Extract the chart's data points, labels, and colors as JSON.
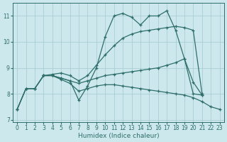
{
  "xlabel": "Humidex (Indice chaleur)",
  "background_color": "#cde8ec",
  "line_color": "#2d6e6a",
  "grid_color": "#aacdd4",
  "xlim": [
    -0.5,
    23.5
  ],
  "ylim": [
    6.9,
    11.5
  ],
  "yticks": [
    7,
    8,
    9,
    10,
    11
  ],
  "xticks": [
    0,
    1,
    2,
    3,
    4,
    5,
    6,
    7,
    8,
    9,
    10,
    11,
    12,
    13,
    14,
    15,
    16,
    17,
    18,
    19,
    20,
    21,
    22,
    23
  ],
  "series": [
    {
      "x": [
        0,
        1,
        2,
        3,
        4,
        5,
        6,
        7,
        8,
        9,
        10,
        11,
        12,
        13,
        14,
        15,
        16,
        17,
        18,
        19,
        20,
        21,
        22,
        23
      ],
      "y": [
        7.4,
        8.2,
        8.2,
        8.7,
        8.7,
        8.6,
        8.5,
        7.75,
        8.3,
        9.0,
        10.2,
        11.0,
        11.1,
        10.95,
        10.65,
        11.0,
        11.0,
        11.2,
        10.45,
        9.35,
        8.0,
        7.95,
        null,
        null
      ]
    },
    {
      "x": [
        3,
        4,
        5,
        6,
        7,
        8,
        9,
        10,
        11,
        12,
        13,
        14,
        15,
        16,
        17,
        18,
        19,
        20,
        21,
        22,
        23
      ],
      "y": [
        8.7,
        8.75,
        8.8,
        8.7,
        8.5,
        8.7,
        9.1,
        9.5,
        9.85,
        10.15,
        10.3,
        10.4,
        10.45,
        10.5,
        10.55,
        10.6,
        10.55,
        10.45,
        8.0,
        null,
        null
      ]
    },
    {
      "x": [
        0,
        1,
        2,
        3,
        4,
        5,
        6,
        7,
        8,
        9,
        10,
        11,
        12,
        13,
        14,
        15,
        16,
        17,
        18,
        19,
        20,
        21,
        22
      ],
      "y": [
        7.4,
        8.2,
        8.2,
        8.7,
        8.7,
        8.6,
        8.5,
        8.4,
        8.5,
        8.6,
        8.7,
        8.75,
        8.8,
        8.85,
        8.9,
        8.95,
        9.0,
        9.1,
        9.2,
        9.35,
        8.45,
        7.95,
        null
      ]
    },
    {
      "x": [
        0,
        1,
        2,
        3,
        4,
        5,
        6,
        7,
        8,
        9,
        10,
        11,
        12,
        13,
        14,
        15,
        16,
        17,
        18,
        19,
        20,
        21,
        22,
        23
      ],
      "y": [
        7.4,
        8.2,
        8.2,
        8.7,
        8.7,
        8.55,
        8.4,
        8.1,
        8.2,
        8.3,
        8.35,
        8.35,
        8.3,
        8.25,
        8.2,
        8.15,
        8.1,
        8.05,
        8.0,
        7.95,
        7.85,
        7.7,
        7.5,
        7.4
      ]
    }
  ]
}
